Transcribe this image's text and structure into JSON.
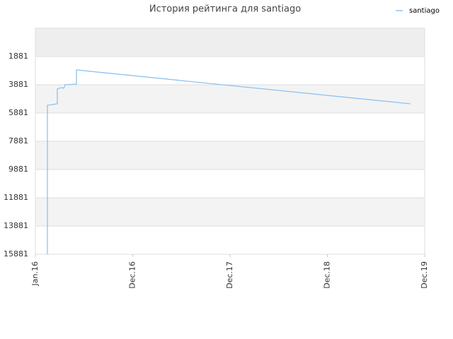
{
  "chart_data": {
    "type": "line",
    "title": "История рейтинга для santiago",
    "series": [
      {
        "name": "santiago",
        "color": "#8ec3f0",
        "x": [
          1.48,
          1.48,
          1.48,
          1.57,
          2.7,
          2.7,
          3.2,
          3.5,
          3.66,
          5.06,
          5.06,
          46.25
        ],
        "values": [
          15881,
          5981,
          5331,
          5331,
          5231,
          4181,
          4081,
          4131,
          3881,
          3831,
          2831,
          5231
        ]
      }
    ],
    "ylim": [
      15881,
      -119
    ],
    "yticks": [
      1881,
      3881,
      5881,
      7881,
      9881,
      11881,
      13881,
      15881
    ],
    "xlim": [
      0,
      48
    ],
    "xticks": [
      {
        "value": 0,
        "label": "Jan.16"
      },
      {
        "value": 12,
        "label": "Dec.16"
      },
      {
        "value": 24,
        "label": "Dec.17"
      },
      {
        "value": 36,
        "label": "Dec.18"
      },
      {
        "value": 48,
        "label": "Dec.19"
      }
    ],
    "grid": true,
    "legend": "top-right"
  }
}
